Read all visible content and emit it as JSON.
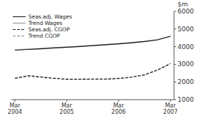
{
  "chart_data": {
    "type": "line",
    "y_label": "$m",
    "categories": [
      "Mar\n2004",
      null,
      null,
      null,
      "Mar\n2005",
      null,
      null,
      null,
      "Mar\n2006",
      null,
      null,
      null,
      "Mar\n2007"
    ],
    "series": [
      {
        "name": "Seas.adj. Wages",
        "color": "#1a1a1a",
        "line_style": "solid",
        "values": [
          3800,
          3840,
          3880,
          3930,
          3970,
          4010,
          4060,
          4110,
          4160,
          4220,
          4290,
          4390,
          4600
        ]
      },
      {
        "name": "Trend Wages",
        "color": "#aaaaaa",
        "line_style": "solid",
        "values": [
          3820,
          3860,
          3900,
          3940,
          3980,
          4020,
          4070,
          4120,
          4170,
          4230,
          4300,
          4400,
          4580
        ]
      },
      {
        "name": "Seas.adj. CGOP",
        "color": "#1a1a1a",
        "line_style": "dashed",
        "values": [
          2200,
          2360,
          2290,
          2200,
          2150,
          2150,
          2160,
          2160,
          2190,
          2270,
          2400,
          2680,
          3050
        ]
      },
      {
        "name": "Trend CGOP",
        "color": "#aaaaaa",
        "line_style": "dashed",
        "values": [
          2230,
          2310,
          2270,
          2220,
          2180,
          2170,
          2170,
          2180,
          2210,
          2290,
          2420,
          2680,
          3020
        ]
      }
    ],
    "ylim": [
      1000,
      6000
    ],
    "yticks": [
      1000,
      2000,
      3000,
      4000,
      5000,
      6000
    ],
    "grid": false,
    "legend": "upper left"
  }
}
